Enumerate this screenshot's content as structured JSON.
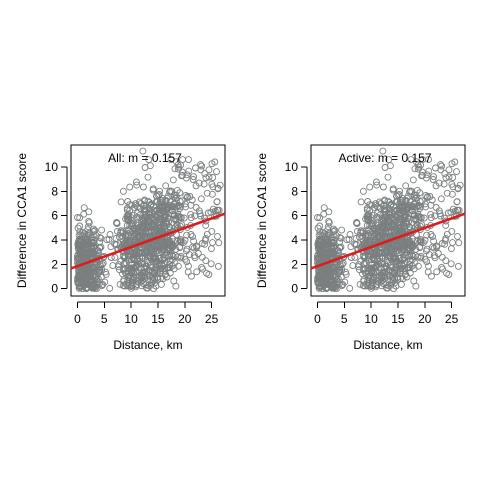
{
  "chart_data": [
    {
      "type": "scatter",
      "annotation": "All: m =  0.157",
      "xlabel": "Distance, km",
      "ylabel": "Difference in CCA1 score",
      "xlim": [
        -1.2,
        27.5
      ],
      "ylim": [
        -0.6,
        11.8
      ],
      "xticks": [
        0,
        5,
        10,
        15,
        20,
        25
      ],
      "yticks": [
        0,
        2,
        4,
        6,
        8,
        10
      ],
      "grid": false,
      "point_color": "#7a7f7f",
      "point_style": "open-circle",
      "fit_line": {
        "color": "#dd1c1c",
        "intercept": 1.85,
        "slope": 0.157,
        "x_range": [
          -1.2,
          27.5
        ]
      },
      "points_note": "approximately 1200 overlapping open circles; cloud concentrated at x 0-5 (y 0-5) and x 8-18 (y 0-9)"
    },
    {
      "type": "scatter",
      "annotation": "Active: m =  0.157",
      "xlabel": "Distance, km",
      "ylabel": "Difference in CCA1 score",
      "xlim": [
        -1.2,
        27.5
      ],
      "ylim": [
        -0.6,
        11.8
      ],
      "xticks": [
        0,
        5,
        10,
        15,
        20,
        25
      ],
      "yticks": [
        0,
        2,
        4,
        6,
        8,
        10
      ],
      "grid": false,
      "point_color": "#7a7f7f",
      "point_style": "open-circle",
      "fit_line": {
        "color": "#dd1c1c",
        "intercept": 1.85,
        "slope": 0.157,
        "x_range": [
          -1.2,
          27.5
        ]
      },
      "points_note": "identical distribution to the left panel"
    }
  ]
}
